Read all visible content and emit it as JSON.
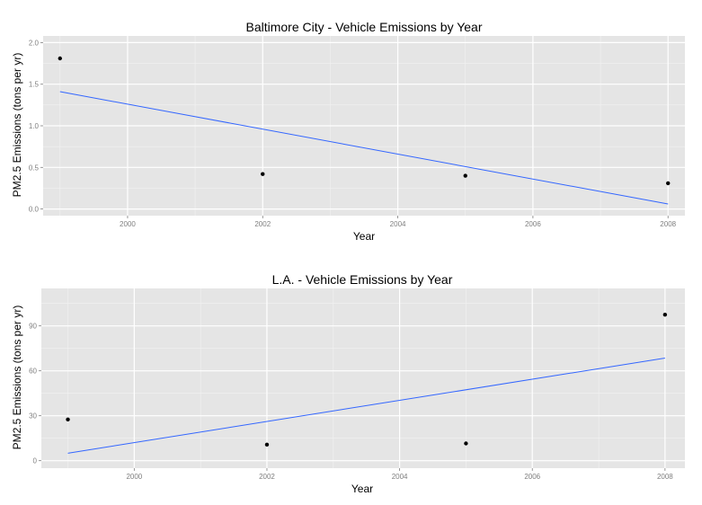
{
  "chart_data": [
    {
      "type": "scatter",
      "title": "Baltimore City - Vehicle Emissions by Year",
      "xlabel": "Year",
      "ylabel": "PM2.5 Emissions (tons per yr)",
      "xlim": [
        1998.75,
        2008.25
      ],
      "ylim": [
        -0.08,
        2.08
      ],
      "x_ticks": [
        2000,
        2002,
        2004,
        2006,
        2008
      ],
      "x_tick_labels": [
        "2000",
        "2002",
        "2004",
        "2006",
        "2008"
      ],
      "y_ticks": [
        0,
        0.5,
        1,
        1.5,
        2
      ],
      "y_tick_labels": [
        "0.0",
        "0.5",
        "1.0",
        "1.5",
        "2.0"
      ],
      "grid": true,
      "points": [
        {
          "x": 1999,
          "y": 1.81
        },
        {
          "x": 2002,
          "y": 0.42
        },
        {
          "x": 2005,
          "y": 0.4
        },
        {
          "x": 2008,
          "y": 0.31
        }
      ],
      "trend_line": {
        "x": [
          1999,
          2008
        ],
        "y": [
          1.41,
          0.06
        ],
        "color": "#3366ff"
      }
    },
    {
      "type": "scatter",
      "title": "L.A. - Vehicle Emissions by Year",
      "xlabel": "Year",
      "ylabel": "PM2.5 Emissions (tons per yr)",
      "xlim": [
        1998.6,
        2008.3
      ],
      "ylim": [
        -5,
        115
      ],
      "x_ticks": [
        2000,
        2002,
        2004,
        2006,
        2008
      ],
      "x_tick_labels": [
        "2000",
        "2002",
        "2004",
        "2006",
        "2008"
      ],
      "y_ticks": [
        0,
        30,
        60,
        90
      ],
      "y_tick_labels": [
        "0",
        "30",
        "60",
        "90"
      ],
      "grid": true,
      "points": [
        {
          "x": 1999,
          "y": 27.5
        },
        {
          "x": 2002,
          "y": 10.7
        },
        {
          "x": 2005,
          "y": 11.5
        },
        {
          "x": 2008,
          "y": 97.5
        }
      ],
      "trend_line": {
        "x": [
          1999,
          2008
        ],
        "y": [
          5,
          68.5
        ],
        "color": "#3366ff"
      }
    }
  ]
}
